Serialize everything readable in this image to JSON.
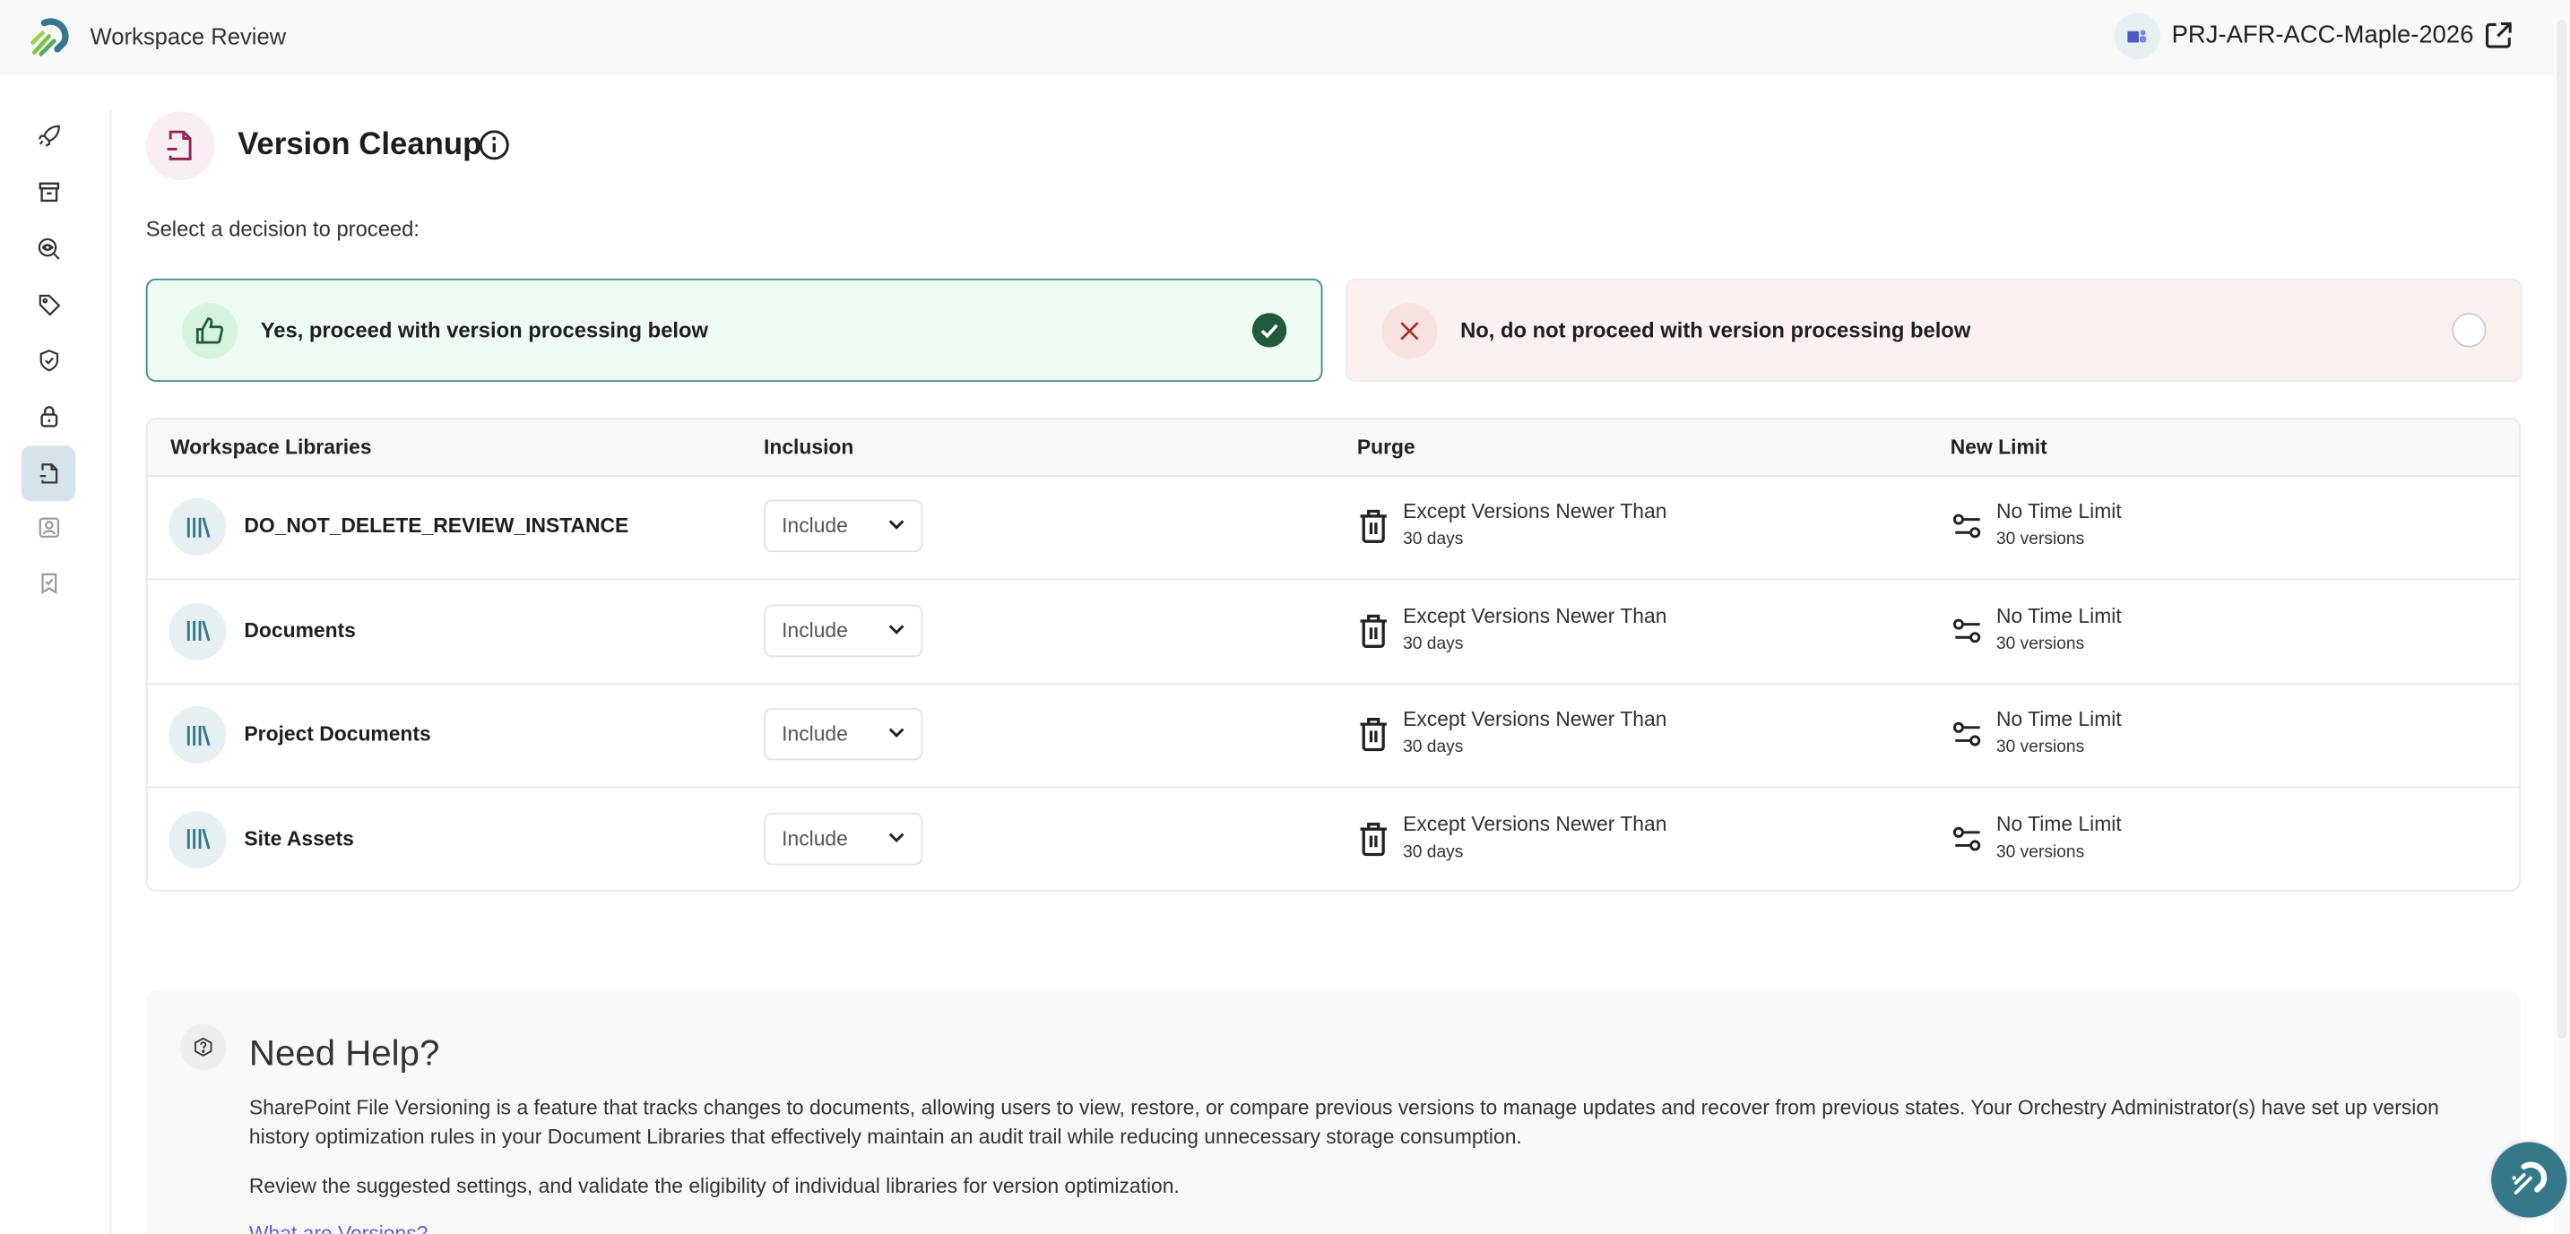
{
  "header": {
    "title": "Workspace Review",
    "workspace_name": "PRJ-AFR-ACC-Maple-2026",
    "workspace_icon": "teams-icon",
    "external_link_icon": "external-link-icon"
  },
  "sidebar": {
    "items": [
      {
        "icon": "rocket-icon"
      },
      {
        "icon": "archive-icon"
      },
      {
        "icon": "eye-search-icon"
      },
      {
        "icon": "tag-icon"
      },
      {
        "icon": "shield-check-icon"
      },
      {
        "icon": "lock-icon"
      },
      {
        "icon": "file-version-icon",
        "active": true
      },
      {
        "icon": "user-badge-icon"
      },
      {
        "icon": "bookmark-check-icon"
      }
    ]
  },
  "page": {
    "title": "Version Cleanup",
    "prompt": "Select a decision to proceed:"
  },
  "decisions": {
    "yes": {
      "label": "Yes, proceed with version processing below",
      "selected": true
    },
    "no": {
      "label": "No, do not proceed with version processing below",
      "selected": false
    }
  },
  "table": {
    "headers": [
      "Workspace Libraries",
      "Inclusion",
      "Purge",
      "New Limit"
    ],
    "rows": [
      {
        "name": "DO_NOT_DELETE_REVIEW_INSTANCE",
        "inclusion": "Include",
        "purge_title": "Except Versions Newer Than",
        "purge_value": "30 days",
        "limit_title": "No Time Limit",
        "limit_value": "30 versions"
      },
      {
        "name": "Documents",
        "inclusion": "Include",
        "purge_title": "Except Versions Newer Than",
        "purge_value": "30 days",
        "limit_title": "No Time Limit",
        "limit_value": "30 versions"
      },
      {
        "name": "Project Documents",
        "inclusion": "Include",
        "purge_title": "Except Versions Newer Than",
        "purge_value": "30 days",
        "limit_title": "No Time Limit",
        "limit_value": "30 versions"
      },
      {
        "name": "Site Assets",
        "inclusion": "Include",
        "purge_title": "Except Versions Newer Than",
        "purge_value": "30 days",
        "limit_title": "No Time Limit",
        "limit_value": "30 versions"
      }
    ]
  },
  "help": {
    "title": "Need Help?",
    "paragraph1": "SharePoint File Versioning is a feature that tracks changes to documents, allowing users to view, restore, or compare previous versions to manage updates and recover from previous states. Your Orchestry Administrator(s) have set up version history optimization rules in your Document Libraries that effectively maintain an audit trail while reducing unnecessary storage consumption.",
    "paragraph2": "Review the suggested settings, and validate the eligibility of individual libraries for version optimization.",
    "link": "What are Versions?"
  },
  "colors": {
    "accent": "#35788a",
    "yes_bg": "#eefbf3",
    "no_bg": "#fbf1f0",
    "check": "#1f5a3a",
    "no_x": "#a12b22"
  }
}
